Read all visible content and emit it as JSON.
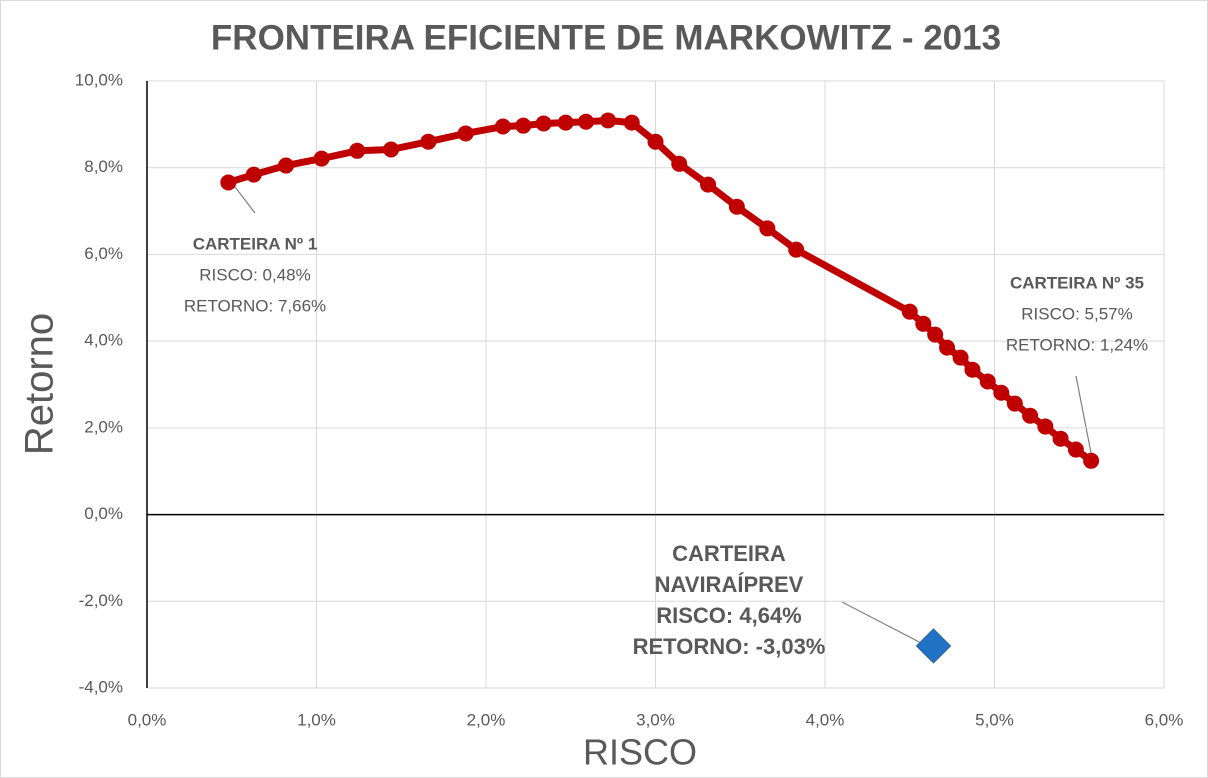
{
  "chart_data": {
    "type": "scatter",
    "title": "FRONTEIRA EFICIENTE DE MARKOWITZ - 2013",
    "x_label": "RISCO",
    "y_label": "Retorno",
    "xlim": [
      0,
      6
    ],
    "ylim": [
      -4,
      10
    ],
    "xticks": [
      {
        "value": 0,
        "label": "0,0%"
      },
      {
        "value": 1,
        "label": "1,0%"
      },
      {
        "value": 2,
        "label": "2,0%"
      },
      {
        "value": 3,
        "label": "3,0%"
      },
      {
        "value": 4,
        "label": "4,0%"
      },
      {
        "value": 5,
        "label": "5,0%"
      },
      {
        "value": 6,
        "label": "6,0%"
      }
    ],
    "yticks": [
      {
        "value": -4,
        "label": "-4,0%"
      },
      {
        "value": -2,
        "label": "-2,0%"
      },
      {
        "value": 0,
        "label": "0,0%"
      },
      {
        "value": 2,
        "label": "2,0%"
      },
      {
        "value": 4,
        "label": "4,0%"
      },
      {
        "value": 6,
        "label": "6,0%"
      },
      {
        "value": 8,
        "label": "8,0%"
      },
      {
        "value": 10,
        "label": "10,0%"
      }
    ],
    "grid": true,
    "series": [
      {
        "color": "#c00000",
        "marker": "circle",
        "line": true,
        "x": [
          0.48,
          0.63,
          0.82,
          1.03,
          1.24,
          1.44,
          1.66,
          1.88,
          2.1,
          2.22,
          2.34,
          2.47,
          2.59,
          2.72,
          2.86,
          3.0,
          3.14,
          3.31,
          3.48,
          3.66,
          3.83,
          4.5,
          4.58,
          4.65,
          4.72,
          4.8,
          4.87,
          4.96,
          5.04,
          5.12,
          5.21,
          5.3,
          5.39,
          5.48,
          5.57
        ],
        "values": [
          7.66,
          7.84,
          8.05,
          8.21,
          8.39,
          8.42,
          8.6,
          8.79,
          8.95,
          8.97,
          9.02,
          9.04,
          9.06,
          9.09,
          9.04,
          8.6,
          8.09,
          7.61,
          7.1,
          6.6,
          6.11,
          4.68,
          4.4,
          4.15,
          3.85,
          3.62,
          3.34,
          3.07,
          2.81,
          2.56,
          2.28,
          2.03,
          1.75,
          1.5,
          1.24
        ]
      },
      {
        "color": "#1f72c4",
        "marker": "diamond",
        "line": false,
        "x": [
          4.64
        ],
        "values": [
          -3.03
        ]
      }
    ],
    "annotations": [
      {
        "lines": [
          "CARTEIRA Nº 1",
          "RISCO: 0,48%",
          "RETORNO: 7,66%"
        ],
        "bold": "first"
      },
      {
        "lines": [
          "CARTEIRA Nº 35",
          "RISCO: 5,57%",
          "RETORNO: 1,24%"
        ],
        "bold": "first"
      },
      {
        "lines": [
          "CARTEIRA",
          "NAVIRAÍPREV",
          "RISCO: 4,64%",
          "RETORNO: -3,03%"
        ],
        "bold": "all"
      }
    ]
  }
}
